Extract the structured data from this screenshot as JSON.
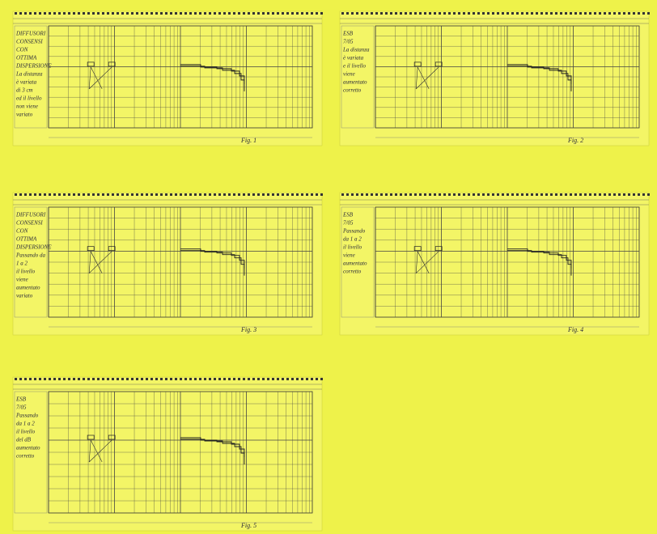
{
  "panels": [
    {
      "notes": [
        "DIFFUSORI",
        "CONSENSI",
        "CON",
        "OTTIMA",
        "DISPERSIONE",
        "La distanza",
        "è variata",
        "di 3 cm",
        "ed il livello",
        "non viene",
        "variato"
      ],
      "figure": "Fig. 1"
    },
    {
      "notes": [
        "ESB",
        "7/05",
        "La distanza",
        "è variata",
        "e il livello",
        "viene",
        "aumentato",
        "corretto"
      ],
      "figure": "Fig. 2"
    },
    {
      "notes": [
        "DIFFUSORI",
        "CONSENSI",
        "CON",
        "OTTIMA",
        "DISPERSIONE",
        "Passando da",
        "1 a 2",
        "il livello",
        "viene",
        "aumentato",
        "variato"
      ],
      "figure": "Fig. 3"
    },
    {
      "notes": [
        "ESB",
        "7/05",
        "Passando",
        "da 1 a 2",
        "il livello",
        "viene",
        "aumentato",
        "corretto"
      ],
      "figure": "Fig. 4"
    },
    {
      "notes": [
        "ESB",
        "7/05",
        "Passando",
        "da 1 a 2",
        "il livello",
        "del dB",
        "aumentato",
        "corretto"
      ],
      "figure": "Fig. 5"
    }
  ]
}
